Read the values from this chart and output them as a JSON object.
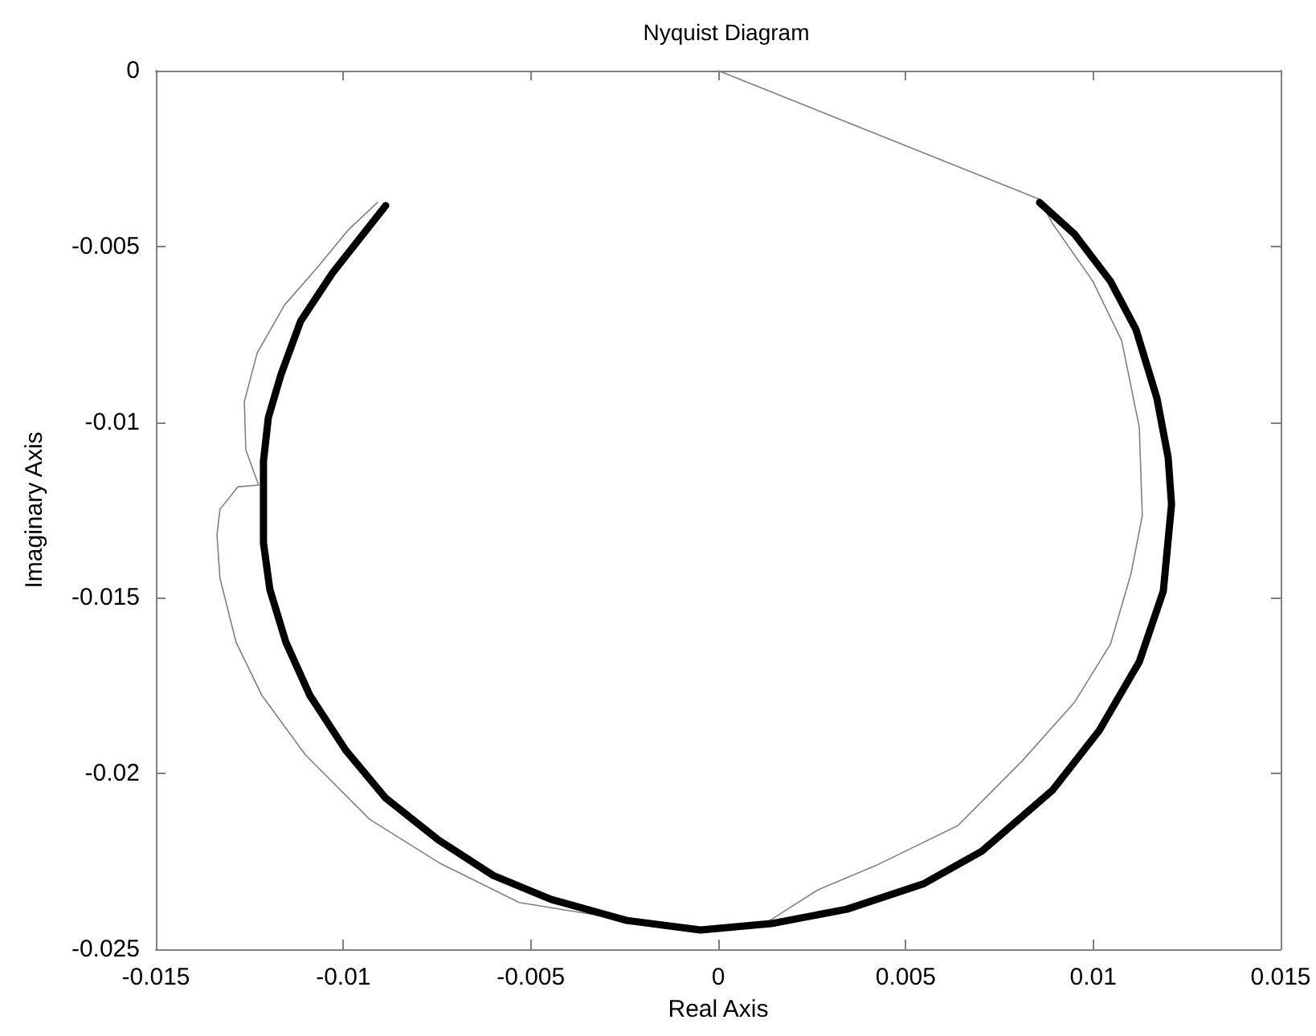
{
  "chart_data": {
    "type": "line",
    "title": "Nyquist Diagram",
    "xlabel": "Real Axis",
    "ylabel": "Imaginary Axis",
    "xlim": [
      -0.015,
      0.015
    ],
    "xticks": [
      -0.015,
      -0.01,
      -0.005,
      0,
      0.005,
      0.01,
      0.015
    ],
    "ylim": [
      -0.025,
      0
    ],
    "yticks": [
      -0.025,
      -0.02,
      -0.015,
      -0.01,
      -0.005,
      0
    ],
    "grid": false,
    "marker": "none",
    "line_style": "solid",
    "series": [
      {
        "color": "#808080",
        "x": [
          -0.00909,
          -0.00986,
          -0.01071,
          -0.01157,
          -0.0123,
          -0.01264,
          -0.0126,
          -0.01226,
          -0.01281,
          -0.01329,
          -0.01337,
          -0.01329,
          -0.01286,
          -0.01217,
          -0.01101,
          -0.0093,
          -0.00746,
          -0.00531,
          -0.00317,
          -0.00047,
          0.00124,
          0.00266,
          0.0042,
          0.00639,
          0.0081,
          0.00951,
          0.01046,
          0.01101,
          0.01131,
          0.01123,
          0.01076,
          0.00999,
          0.00891,
          0.00857,
          0
        ],
        "values": [
          -0.00375,
          -0.00452,
          -0.00562,
          -0.00667,
          -0.00804,
          -0.00942,
          -0.01079,
          -0.01179,
          -0.01184,
          -0.01248,
          -0.01321,
          -0.01444,
          -0.01627,
          -0.01778,
          -0.01947,
          -0.0213,
          -0.02253,
          -0.02367,
          -0.02404,
          -0.02445,
          -0.02427,
          -0.02331,
          -0.02262,
          -0.02148,
          -0.01965,
          -0.01796,
          -0.01632,
          -0.01431,
          -0.01266,
          -0.01015,
          -0.00768,
          -0.00599,
          -0.00434,
          -0.00366,
          0
        ]
      },
      {
        "color": "#000000",
        "x": [
          -0.00887,
          -0.01029,
          -0.01114,
          -0.01166,
          -0.012,
          -0.01213,
          -0.01213,
          -0.01196,
          -0.01153,
          -0.01089,
          -0.00994,
          -0.00887,
          -0.00746,
          -0.006,
          -0.00446,
          -0.00244,
          -0.00047,
          0.00141,
          0.00343,
          0.00549,
          0.00703,
          0.00891,
          0.01016,
          0.01123,
          0.01187,
          0.01209,
          0.012,
          0.0117,
          0.01114,
          0.01046,
          0.00951,
          0.00857
        ],
        "values": [
          -0.00384,
          -0.00576,
          -0.00713,
          -0.00864,
          -0.00987,
          -0.01111,
          -0.01344,
          -0.01476,
          -0.01627,
          -0.01778,
          -0.01933,
          -0.0207,
          -0.02189,
          -0.0229,
          -0.02358,
          -0.02418,
          -0.02445,
          -0.02427,
          -0.02386,
          -0.02313,
          -0.02221,
          -0.02048,
          -0.01878,
          -0.01682,
          -0.01481,
          -0.01234,
          -0.01101,
          -0.00932,
          -0.00736,
          -0.00599,
          -0.00466,
          -0.00375
        ]
      }
    ]
  }
}
